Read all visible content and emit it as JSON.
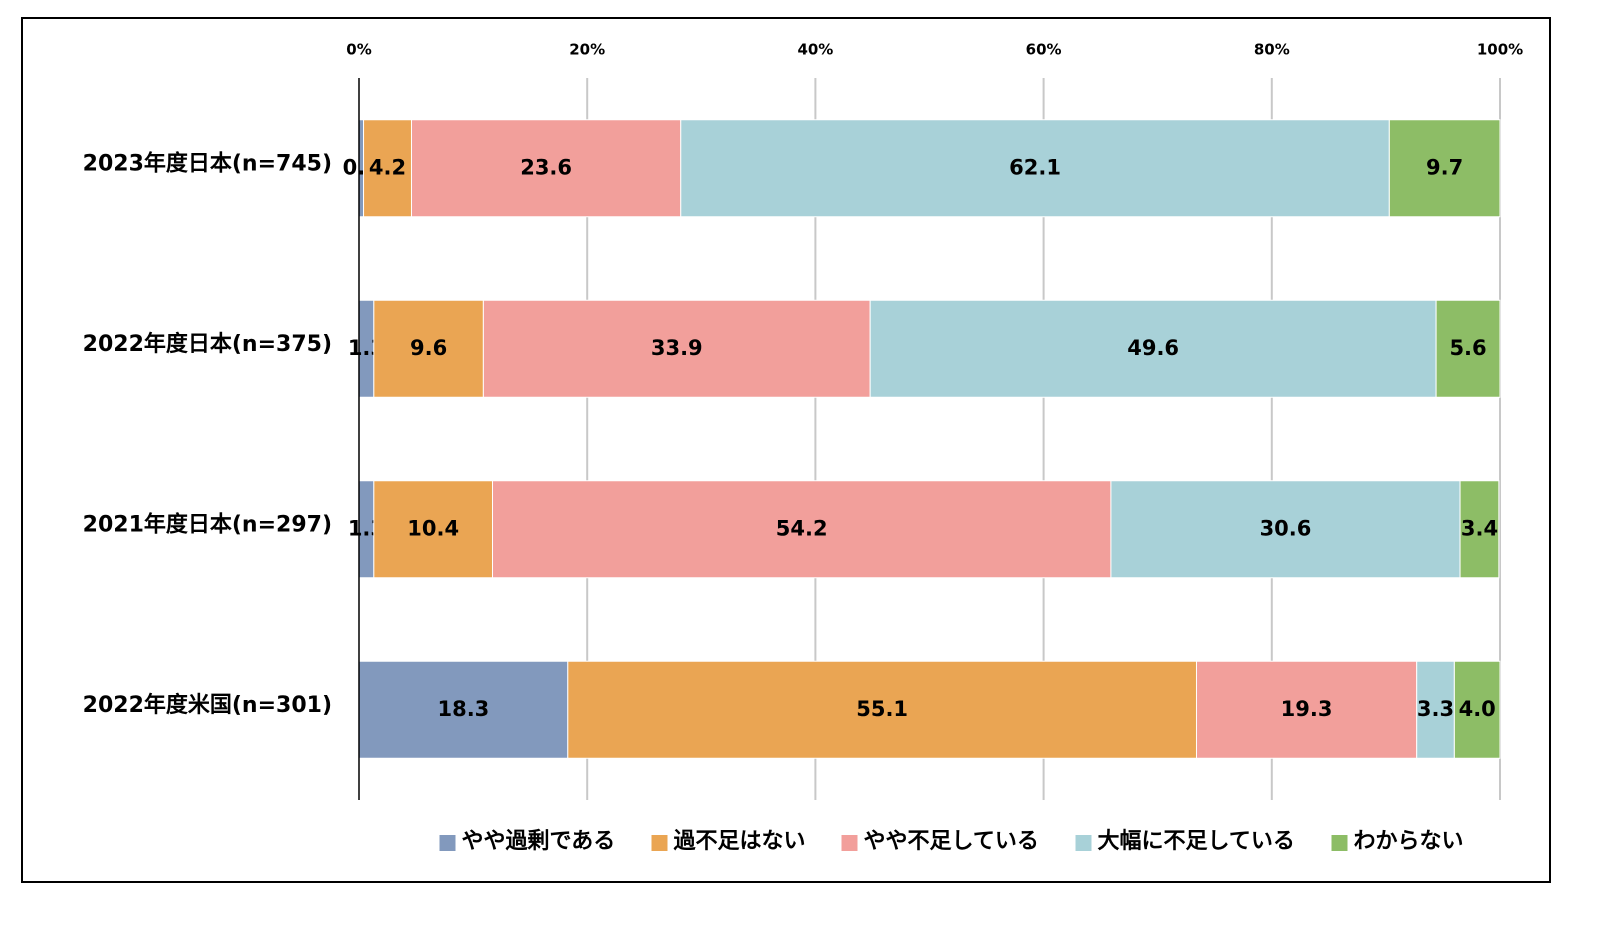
{
  "chart_data": {
    "type": "stacked-bar-horizontal",
    "categories": [
      "2023年度日本(n=745)",
      "2022年度日本(n=375)",
      "2021年度日本(n=297)",
      "2022年度米国(n=301)"
    ],
    "series": [
      {
        "name": "やや過剰である",
        "color": "#8299bd",
        "values": [
          0.4,
          1.3,
          1.3,
          18.3
        ]
      },
      {
        "name": "過不足はない",
        "color": "#eaa553",
        "values": [
          4.2,
          9.6,
          10.4,
          55.1
        ]
      },
      {
        "name": "やや不足している",
        "color": "#f29f9b",
        "values": [
          23.6,
          33.9,
          54.2,
          19.3
        ]
      },
      {
        "name": "大幅に不足している",
        "color": "#a8d1d8",
        "values": [
          62.1,
          49.6,
          30.6,
          3.3
        ]
      },
      {
        "name": "わからない",
        "color": "#8dbd66",
        "values": [
          9.7,
          5.6,
          3.4,
          4
        ],
        "value_labels": [
          "9.7",
          "5.6",
          "3.4",
          "4.0"
        ]
      }
    ],
    "xlim": [
      0,
      100
    ],
    "xticks": [
      {
        "value": 0,
        "label": "0%"
      },
      {
        "value": 20,
        "label": "20%"
      },
      {
        "value": 40,
        "label": "40%"
      },
      {
        "value": 60,
        "label": "60%"
      },
      {
        "value": 80,
        "label": "80%"
      },
      {
        "value": 100,
        "label": "100%"
      }
    ],
    "grid": true,
    "legend": "bottom"
  }
}
